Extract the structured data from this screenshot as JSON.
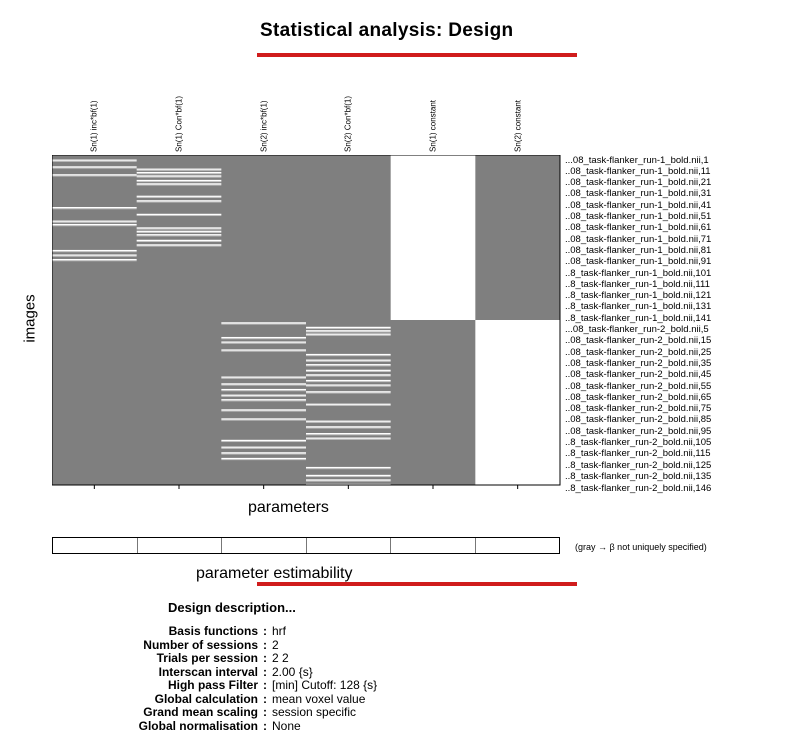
{
  "title": "Statistical analysis: Design",
  "columns": [
    "Sn(1) inc*bf(1)",
    "Sn(1) Con*bf(1)",
    "Sn(2) inc*bf(1)",
    "Sn(2) Con*bf(1)",
    "Sn(1) constant",
    "Sn(2) constant"
  ],
  "ylabel": "images",
  "xlabel": "parameters",
  "row_labels": [
    "...08_task-flanker_run-1_bold.nii,1",
    "..08_task-flanker_run-1_bold.nii,11",
    "..08_task-flanker_run-1_bold.nii,21",
    "..08_task-flanker_run-1_bold.nii,31",
    "..08_task-flanker_run-1_bold.nii,41",
    "..08_task-flanker_run-1_bold.nii,51",
    "..08_task-flanker_run-1_bold.nii,61",
    "..08_task-flanker_run-1_bold.nii,71",
    "..08_task-flanker_run-1_bold.nii,81",
    "..08_task-flanker_run-1_bold.nii,91",
    "..8_task-flanker_run-1_bold.nii,101",
    "..8_task-flanker_run-1_bold.nii,111",
    "..8_task-flanker_run-1_bold.nii,121",
    "..8_task-flanker_run-1_bold.nii,131",
    "..8_task-flanker_run-1_bold.nii,141",
    "...08_task-flanker_run-2_bold.nii,5",
    "..08_task-flanker_run-2_bold.nii,15",
    "..08_task-flanker_run-2_bold.nii,25",
    "..08_task-flanker_run-2_bold.nii,35",
    "..08_task-flanker_run-2_bold.nii,45",
    "..08_task-flanker_run-2_bold.nii,55",
    "..08_task-flanker_run-2_bold.nii,65",
    "..08_task-flanker_run-2_bold.nii,75",
    "..08_task-flanker_run-2_bold.nii,85",
    "..08_task-flanker_run-2_bold.nii,95",
    "..8_task-flanker_run-2_bold.nii,105",
    "..8_task-flanker_run-2_bold.nii,115",
    "..8_task-flanker_run-2_bold.nii,125",
    "..8_task-flanker_run-2_bold.nii,135",
    "..8_task-flanker_run-2_bold.nii,146"
  ],
  "design_matrix": {
    "n_scans_per_session": 146,
    "background_color": "#7f7f7f",
    "regressor_color": "#ffffff",
    "event_scans": {
      "col1": [
        4,
        10,
        17,
        46,
        58,
        61,
        84,
        88,
        92
      ],
      "col2": [
        12,
        15,
        18,
        22,
        25,
        36,
        40,
        52,
        64,
        67,
        70,
        75,
        79
      ],
      "col3": [
        2,
        15,
        19,
        26,
        50,
        56,
        61,
        66,
        70,
        79,
        87,
        106,
        112,
        117,
        122
      ],
      "col4": [
        6,
        9,
        12,
        30,
        35,
        39,
        44,
        48,
        53,
        57,
        63,
        74,
        89,
        94,
        100,
        104,
        130,
        137,
        141,
        145
      ]
    }
  },
  "estimability": {
    "label": "parameter estimability",
    "note": "(gray → β not uniquely specified)"
  },
  "description": {
    "title": "Design description...",
    "rows": [
      {
        "key": "Basis functions",
        "value": "hrf"
      },
      {
        "key": "Number of sessions",
        "value": "2"
      },
      {
        "key": "Trials per session",
        "value": "2  2"
      },
      {
        "key": "Interscan interval",
        "value": "2.00 {s}"
      },
      {
        "key": "High pass Filter",
        "value": "[min] Cutoff: 128 {s}"
      },
      {
        "key": "Global calculation",
        "value": "mean voxel value"
      },
      {
        "key": "Grand mean scaling",
        "value": "session specific"
      },
      {
        "key": "Global normalisation",
        "value": "None"
      }
    ]
  },
  "colors": {
    "accent": "#d01c1c"
  }
}
